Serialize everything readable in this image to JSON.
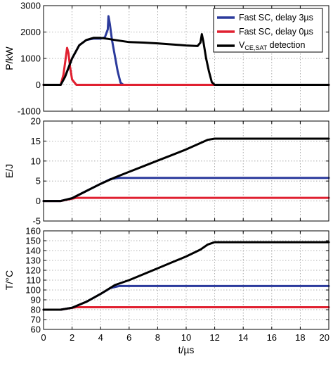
{
  "chart_data": [
    {
      "type": "line",
      "ylabel": "P/kW",
      "ylim": [
        -1000,
        3000
      ],
      "yticks": [
        -1000,
        0,
        1000,
        2000,
        3000
      ],
      "xlim": [
        0,
        20
      ],
      "grid": true,
      "legend": "top-right",
      "series": [
        {
          "name": "Fast SC, delay 3µs",
          "color": "#2b3a9c",
          "x": [
            0,
            1.2,
            1.5,
            2.0,
            2.5,
            3.0,
            3.5,
            4.0,
            4.3,
            4.5,
            4.55,
            4.65,
            4.8,
            5.0,
            5.2,
            5.4,
            5.6,
            6,
            20
          ],
          "y": [
            0,
            0,
            300,
            1000,
            1500,
            1700,
            1750,
            1750,
            1800,
            2100,
            2600,
            2300,
            1700,
            1100,
            500,
            80,
            0,
            0,
            0
          ]
        },
        {
          "name": "Fast SC, delay 0µs",
          "color": "#e02030",
          "x": [
            0,
            1.2,
            1.4,
            1.55,
            1.65,
            1.75,
            1.85,
            2.0,
            2.3,
            20
          ],
          "y": [
            0,
            0,
            400,
            1000,
            1400,
            1200,
            700,
            200,
            0,
            0
          ]
        },
        {
          "name": "V_CE,SAT detection",
          "color": "#000000",
          "x": [
            0,
            1.2,
            1.5,
            2.0,
            2.5,
            3.0,
            3.5,
            4.0,
            4.5,
            5.0,
            6,
            7,
            8,
            9,
            10,
            10.8,
            11.0,
            11.1,
            11.2,
            11.4,
            11.6,
            11.8,
            12.0,
            20
          ],
          "y": [
            0,
            0,
            300,
            1000,
            1500,
            1700,
            1780,
            1780,
            1740,
            1700,
            1620,
            1600,
            1570,
            1530,
            1490,
            1470,
            1600,
            1920,
            1650,
            1000,
            500,
            100,
            0,
            0
          ]
        }
      ]
    },
    {
      "type": "line",
      "ylabel": "E/J",
      "ylim": [
        -5,
        20
      ],
      "yticks": [
        -5,
        0,
        5,
        10,
        15,
        20
      ],
      "xlim": [
        0,
        20
      ],
      "grid": true,
      "series": [
        {
          "color": "#e02030",
          "x": [
            0,
            1.2,
            1.6,
            2.3,
            20
          ],
          "y": [
            0,
            0,
            0.3,
            0.8,
            0.8
          ]
        },
        {
          "color": "#2b3a9c",
          "x": [
            0,
            1.2,
            2,
            3,
            4,
            4.7,
            5.3,
            20
          ],
          "y": [
            0,
            0,
            0.7,
            2.5,
            4.3,
            5.5,
            5.8,
            5.8
          ]
        },
        {
          "color": "#000000",
          "x": [
            0,
            1.2,
            2,
            3,
            4,
            5,
            6,
            7,
            8,
            9,
            10,
            11,
            11.5,
            12,
            20
          ],
          "y": [
            0,
            0,
            0.7,
            2.5,
            4.3,
            5.9,
            7.3,
            8.7,
            10.1,
            11.5,
            12.9,
            14.5,
            15.3,
            15.6,
            15.6
          ]
        }
      ]
    },
    {
      "type": "line",
      "ylabel": "T/°C",
      "xlabel": "t/µs",
      "ylim": [
        60,
        160
      ],
      "yticks": [
        60,
        70,
        80,
        90,
        100,
        110,
        120,
        130,
        140,
        150,
        160
      ],
      "xlim": [
        0,
        20
      ],
      "xticks": [
        0,
        2,
        4,
        6,
        8,
        10,
        12,
        14,
        16,
        18,
        20
      ],
      "grid": true,
      "series": [
        {
          "color": "#e02030",
          "x": [
            0,
            1.2,
            1.6,
            2.3,
            20
          ],
          "y": [
            80,
            80,
            81,
            82.5,
            82.5
          ]
        },
        {
          "color": "#2b3a9c",
          "x": [
            0,
            1.2,
            2,
            3,
            4,
            4.7,
            5.3,
            20
          ],
          "y": [
            80,
            80,
            82,
            88,
            96,
            102,
            104,
            104
          ]
        },
        {
          "color": "#000000",
          "x": [
            0,
            1.2,
            2,
            3,
            4,
            5,
            6,
            7,
            8,
            9,
            10,
            11,
            11.5,
            12,
            20
          ],
          "y": [
            80,
            80,
            82,
            88,
            96,
            105,
            110,
            116,
            122,
            128,
            134,
            141,
            146,
            148.5,
            148.5
          ]
        }
      ]
    }
  ]
}
